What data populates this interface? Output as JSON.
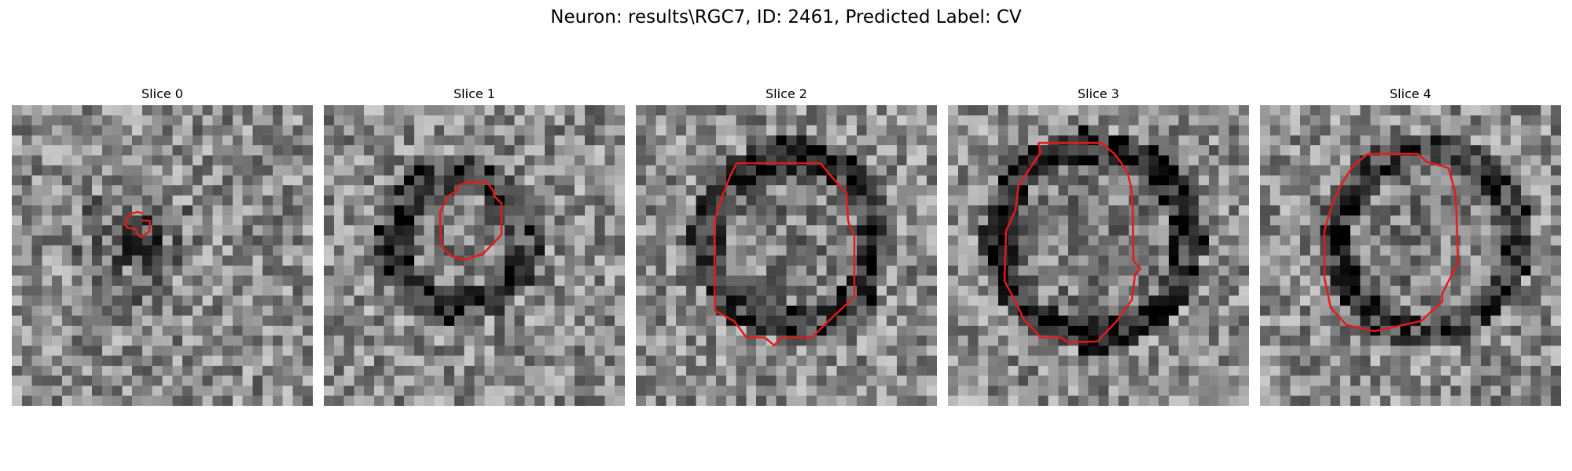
{
  "figure": {
    "title": "Neuron: results\\RGC7, ID: 2461, Predicted Label: CV"
  },
  "colors": {
    "contour": "#e41a1c",
    "background": "#ffffff",
    "colormap": "gray"
  },
  "panels": [
    {
      "title": "Slice 0",
      "image": "grayscale-noise-patch"
    },
    {
      "title": "Slice 1",
      "image": "grayscale-noise-patch"
    },
    {
      "title": "Slice 2",
      "image": "grayscale-noise-patch"
    },
    {
      "title": "Slice 3",
      "image": "grayscale-noise-patch"
    },
    {
      "title": "Slice 4",
      "image": "grayscale-noise-patch"
    }
  ]
}
